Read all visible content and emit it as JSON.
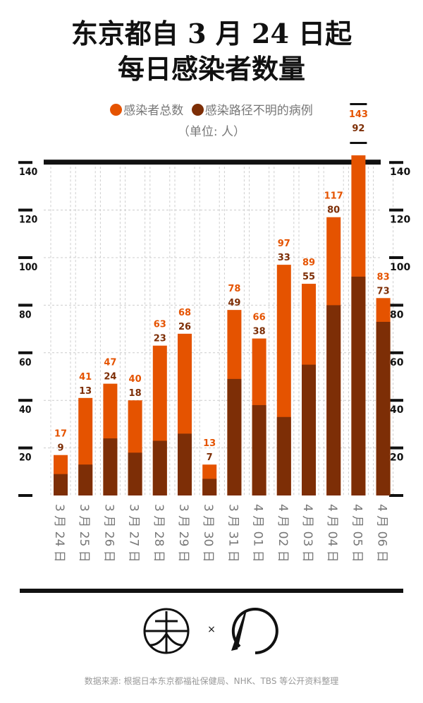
{
  "header": {
    "title_line1": "东京都自 3 月 24 日起",
    "title_line2": "每日感染者数量"
  },
  "legend": {
    "unit": "（单位: 人）"
  },
  "colors": {
    "total": "#e55300",
    "unknown": "#7d2e06",
    "axis": "#111111",
    "grid": "#cccccc"
  },
  "chart_data": {
    "type": "bar",
    "title": "东京都自 3 月 24 日起每日感染者数量",
    "ylabel": "人",
    "ylim": [
      0,
      140
    ],
    "yticks": [
      20,
      40,
      60,
      80,
      100,
      120,
      140
    ],
    "grid": true,
    "legend_position": "top",
    "categories": [
      "3月24日",
      "3月25日",
      "3月26日",
      "3月27日",
      "3月28日",
      "3月29日",
      "3月30日",
      "3月31日",
      "4月01日",
      "4月02日",
      "4月03日",
      "4月04日",
      "4月05日",
      "4月06日"
    ],
    "series": [
      {
        "name": "感染者总数",
        "values": [
          17,
          41,
          47,
          40,
          63,
          68,
          13,
          78,
          66,
          97,
          89,
          117,
          143,
          83
        ]
      },
      {
        "name": "感染路径不明的病例",
        "values": [
          9,
          13,
          24,
          18,
          23,
          26,
          7,
          49,
          38,
          33,
          55,
          80,
          92,
          73
        ]
      }
    ]
  },
  "footer": {
    "logo_x": "×",
    "source": "数据来源: 根据日本东京都福祉保健局、NHK、TBS 等公开资料整理"
  }
}
